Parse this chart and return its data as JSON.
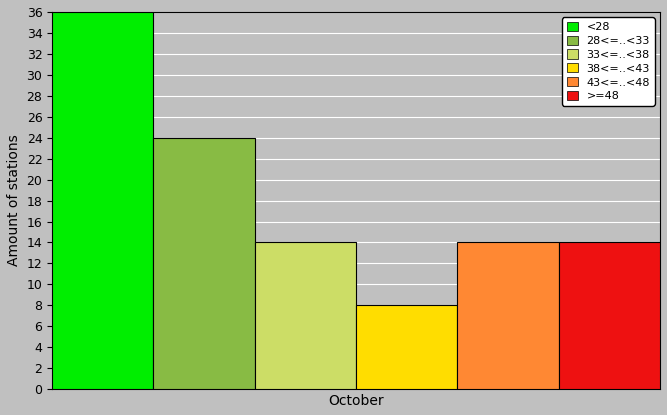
{
  "bars": [
    {
      "label": "<28",
      "value": 36,
      "color": "#00ee00",
      "color_light": "#66ff44"
    },
    {
      "label": "28<=..<33",
      "value": 24,
      "color": "#88bb44",
      "color_light": "#bbdd88"
    },
    {
      "label": "33<=..<38",
      "value": 14,
      "color": "#ccdd66",
      "color_light": "#eeff99"
    },
    {
      "label": "38<=..<43",
      "value": 8,
      "color": "#ffdd00",
      "color_light": "#ffff44"
    },
    {
      "label": "43<=..<48",
      "value": 14,
      "color": "#ff8833",
      "color_light": "#ffbb77"
    },
    {
      "label": ">=48",
      "value": 14,
      "color": "#ee1111",
      "color_light": "#ee1111"
    }
  ],
  "ylabel": "Amount of stations",
  "xlabel": "October",
  "ylim": [
    0,
    36
  ],
  "yticks": [
    0,
    2,
    4,
    6,
    8,
    10,
    12,
    14,
    16,
    18,
    20,
    22,
    24,
    26,
    28,
    30,
    32,
    34,
    36
  ],
  "bg_color": "#c0c0c0",
  "grid_color": "#aaaaaa",
  "axis_label_fontsize": 10,
  "tick_fontsize": 9,
  "legend_fontsize": 8
}
